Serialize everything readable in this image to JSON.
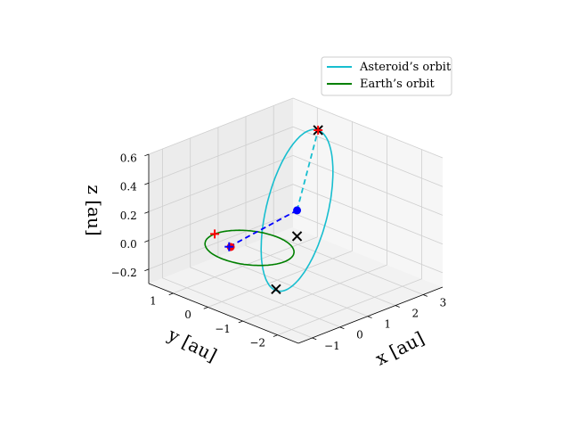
{
  "chart_data": {
    "type": "line3d",
    "title": "",
    "xlabel": "x [au]",
    "ylabel": "y [au]",
    "zlabel": "z [au]",
    "xlim": [
      -1.5,
      3.7
    ],
    "ylim": [
      -2.6,
      1.7
    ],
    "zlim": [
      -0.3,
      0.6
    ],
    "x_ticks": [
      -1,
      0,
      1,
      2,
      3
    ],
    "x_tick_labels": [
      "−1",
      "0",
      "1",
      "2",
      "3"
    ],
    "y_ticks": [
      -2,
      -1,
      0,
      1
    ],
    "y_tick_labels": [
      "−2",
      "−1",
      "0",
      "1"
    ],
    "z_ticks": [
      -0.2,
      0.0,
      0.2,
      0.4,
      0.6
    ],
    "z_tick_labels": [
      "−0.2",
      "0.0",
      "0.2",
      "0.4",
      "0.6"
    ],
    "grid": true,
    "legend": {
      "placement": "top-right",
      "entries": [
        {
          "name": "Asteroid’s orbit",
          "color": "#17becf"
        },
        {
          "name": "Earth’s orbit",
          "color": "#008000"
        }
      ]
    },
    "series": [
      {
        "name": "Asteroid’s orbit",
        "kind": "ellipse",
        "color": "#17becf",
        "center": [
          1.4,
          -0.25,
          0.18
        ],
        "u": [
          1.95,
          0.95,
          0.32
        ],
        "v": [
          -0.32,
          0.58,
          0.04
        ]
      },
      {
        "name": "Earth’s orbit",
        "kind": "circle",
        "color": "#008000",
        "center": [
          0,
          0,
          0
        ],
        "u": [
          1.0,
          0,
          0
        ],
        "v": [
          0,
          1.0,
          0
        ]
      },
      {
        "name": "",
        "kind": "segment",
        "style": "dashed",
        "color": "#17becf",
        "points": [
          [
            1.4,
            -0.25,
            0.18
          ],
          [
            3.35,
            0.7,
            0.5
          ]
        ]
      },
      {
        "name": "",
        "kind": "segment",
        "style": "dashed",
        "color": "#0000ff",
        "points": [
          [
            1.4,
            -0.25,
            0.18
          ],
          [
            -0.32,
            0.33,
            0.0
          ]
        ]
      }
    ],
    "points": [
      {
        "kind": "dot",
        "color": "#0000ff",
        "xyz": [
          1.4,
          -0.25,
          0.18
        ]
      },
      {
        "kind": "dot",
        "color": "#ff0000",
        "xyz": [
          -0.3,
          0.3,
          0.0
        ]
      },
      {
        "kind": "x",
        "color": "#000000",
        "xyz": [
          3.35,
          0.7,
          0.5
        ]
      },
      {
        "kind": "x",
        "color": "#000000",
        "xyz": [
          1.4,
          -0.25,
          0.0
        ]
      },
      {
        "kind": "x",
        "color": "#000000",
        "xyz": [
          -0.55,
          -1.2,
          -0.13
        ]
      },
      {
        "kind": "plus",
        "color": "#0000ff",
        "xyz": [
          -0.32,
          0.33,
          0.0
        ]
      },
      {
        "kind": "plus",
        "color": "#ff0000",
        "xyz": [
          0.0,
          1.0,
          0.0
        ]
      },
      {
        "kind": "plus",
        "color": "#ff0000",
        "xyz": [
          3.35,
          0.7,
          0.5
        ]
      }
    ]
  }
}
